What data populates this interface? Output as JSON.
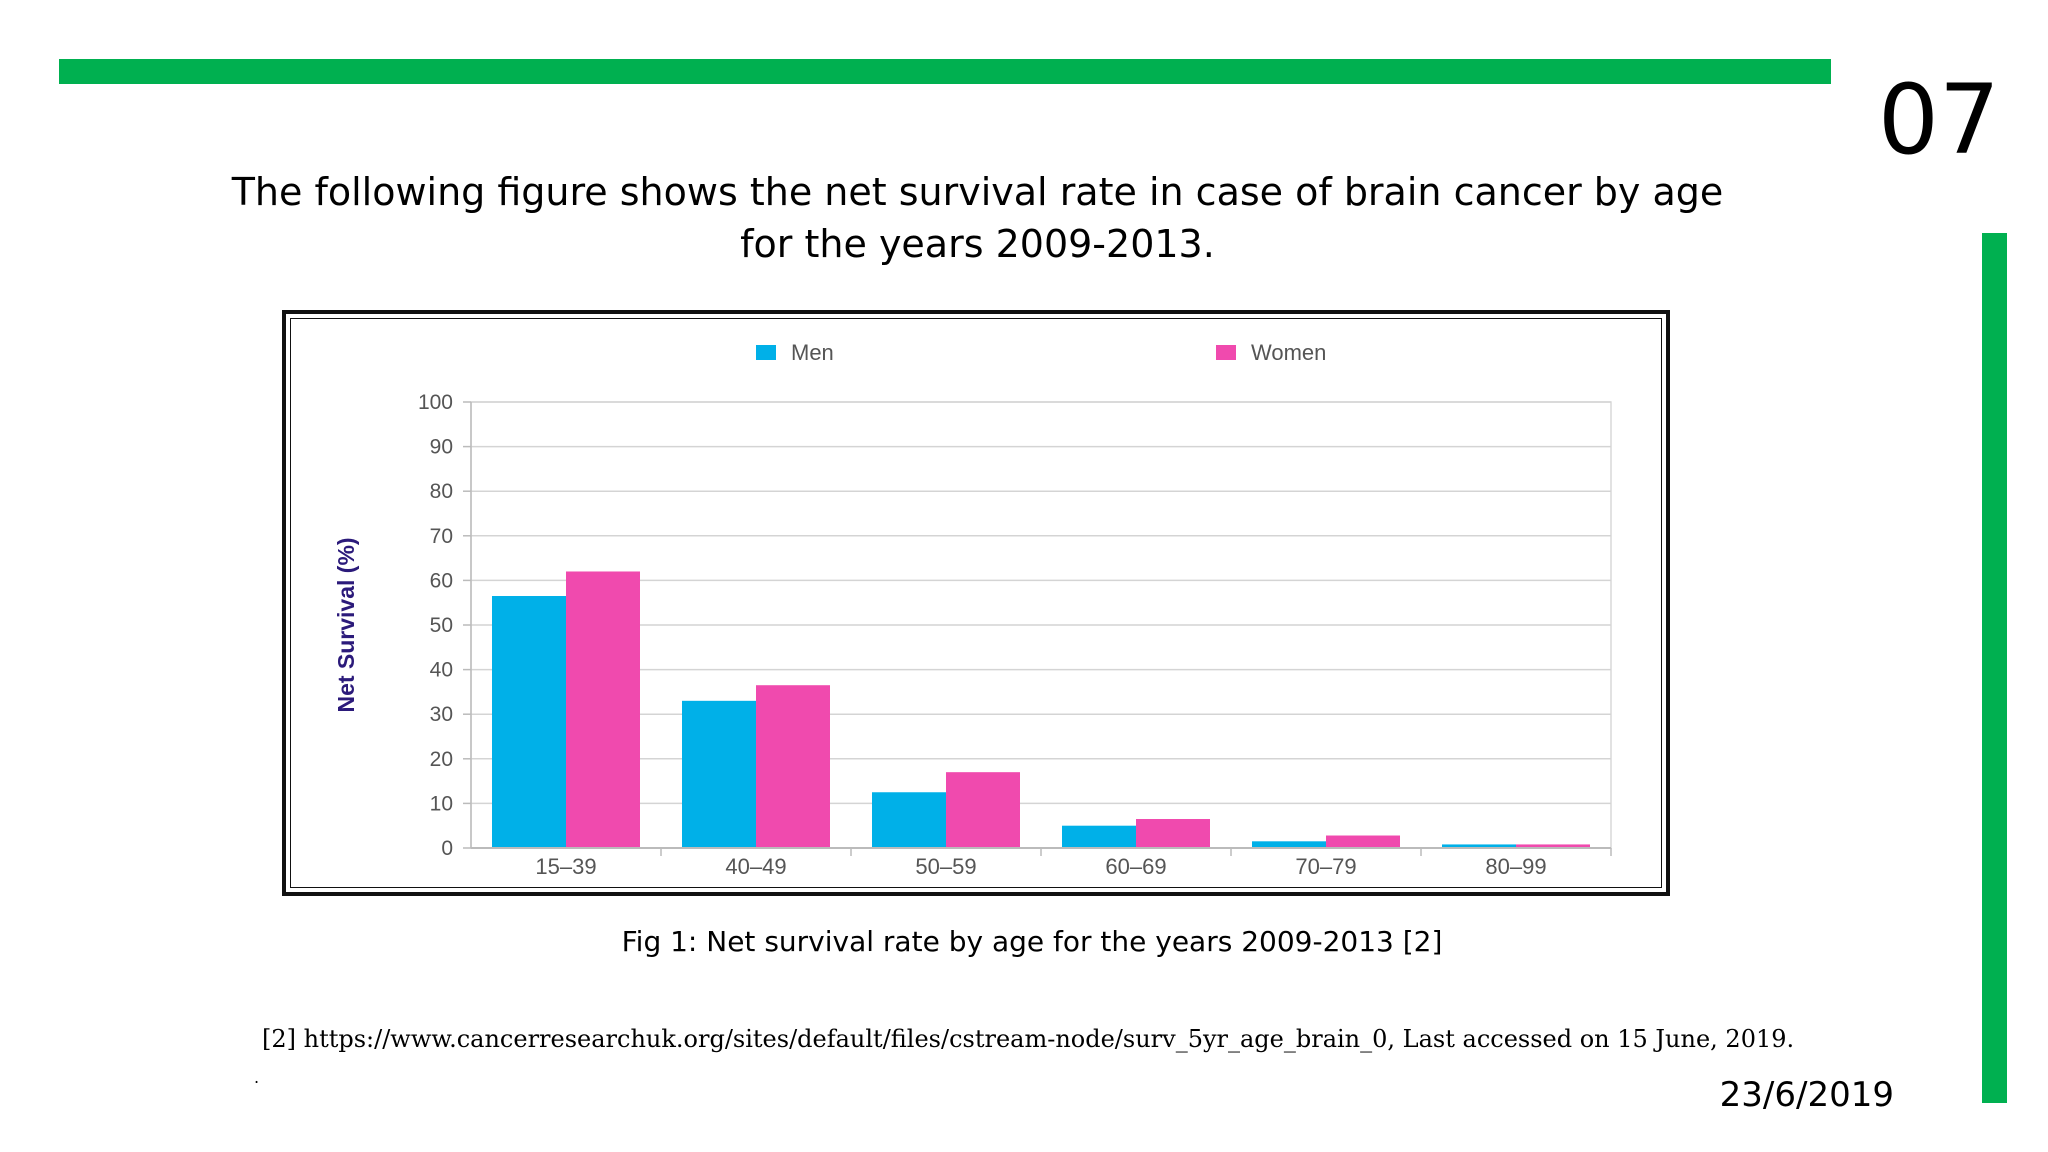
{
  "slide": {
    "page_number": "07",
    "heading": "The following figure shows the net survival rate in case of brain cancer by age for the years 2009-2013.",
    "caption": "Fig 1: Net survival rate by age for the years 2009-2013 [2]",
    "reference": "[2] https://www.cancerresearchuk.org/sites/default/files/cstream-node/surv_5yr_age_brain_0, Last accessed on 15 June, 2019.",
    "stray_mark": ".",
    "date": "23/6/2019"
  },
  "colors": {
    "accent": "#00B050",
    "men": "#00B0E8",
    "women": "#F04AAE",
    "ylabel": "#2B1A7A"
  },
  "chart_data": {
    "type": "bar",
    "title": "",
    "xlabel": "",
    "ylabel": "Net Survival (%)",
    "ylim": [
      0,
      100
    ],
    "yticks": [
      0,
      10,
      20,
      30,
      40,
      50,
      60,
      70,
      80,
      90,
      100
    ],
    "categories": [
      "15–39",
      "40–49",
      "50–59",
      "60–69",
      "70–79",
      "80–99"
    ],
    "series": [
      {
        "name": "Men",
        "values": [
          56.5,
          33,
          12.5,
          5,
          1.5,
          0.8
        ]
      },
      {
        "name": "Women",
        "values": [
          62,
          36.5,
          17,
          6.5,
          2.8,
          0.8
        ]
      }
    ],
    "legend_position": "top",
    "grid": true
  }
}
